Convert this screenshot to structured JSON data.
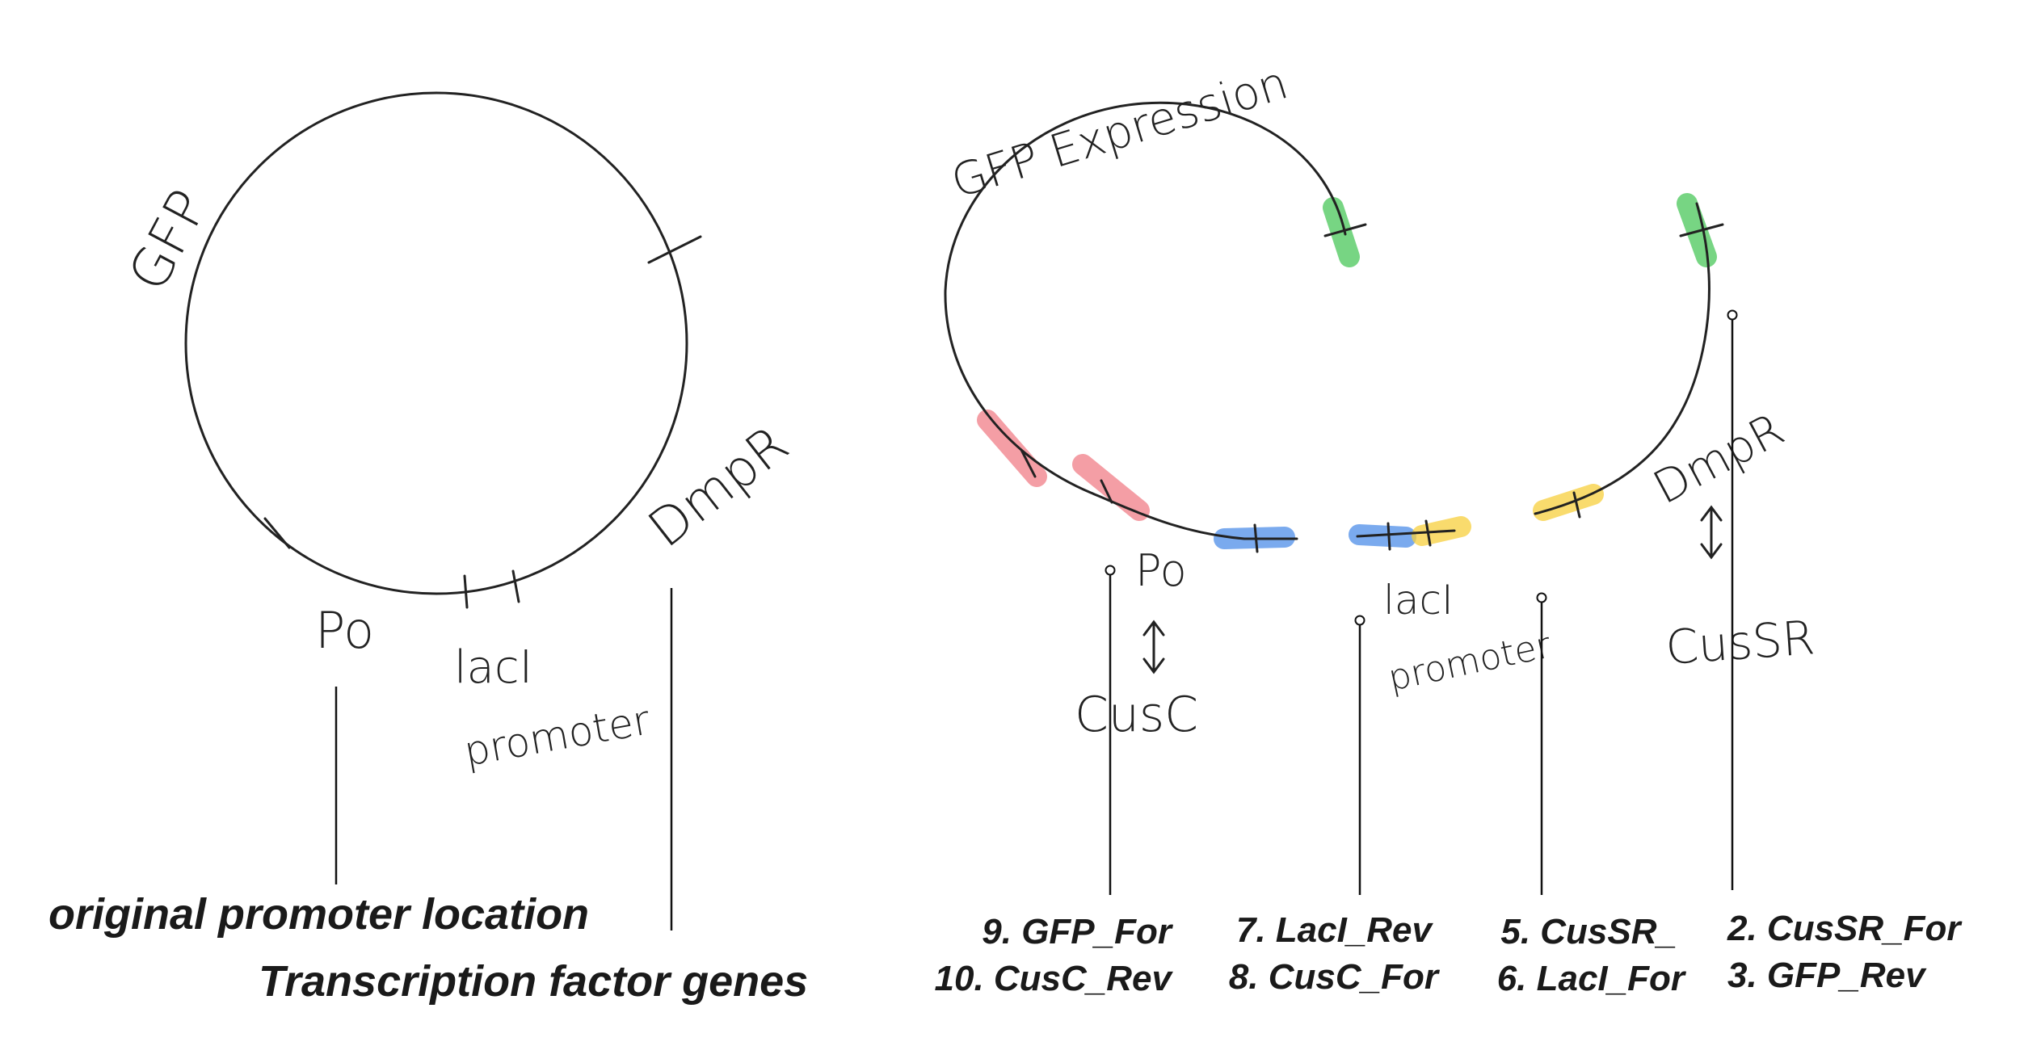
{
  "left_plasmid": {
    "gene_labels": {
      "gfp": "GFP",
      "dmpr": "DmpR",
      "po": "Po",
      "laci": "lacI",
      "promoter": "promoter"
    },
    "captions": {
      "original_promoter": "original promoter location",
      "tf_genes": "Transcription factor genes"
    }
  },
  "right_plasmid": {
    "gene_labels": {
      "gfp_expression": "GFP Expression",
      "dmpr": "DmpR",
      "cussr": "CusSR",
      "po": "Po",
      "cusc": "CusC",
      "laci": "lacI",
      "promoter": "promoter"
    },
    "colors": {
      "green": "#49c75a",
      "red": "#f07d87",
      "blue": "#4d8ee8",
      "yellow": "#f7cf3c"
    },
    "primers": {
      "group1": [
        "9. GFP_For",
        "10. CusC_Rev"
      ],
      "group2": [
        "7. LacI_Rev",
        "8. CusC_For"
      ],
      "group3": [
        "5. CusSR_",
        "6. LacI_For"
      ],
      "group4": [
        "2. CusSR_For",
        "3. GFP_Rev"
      ]
    }
  }
}
